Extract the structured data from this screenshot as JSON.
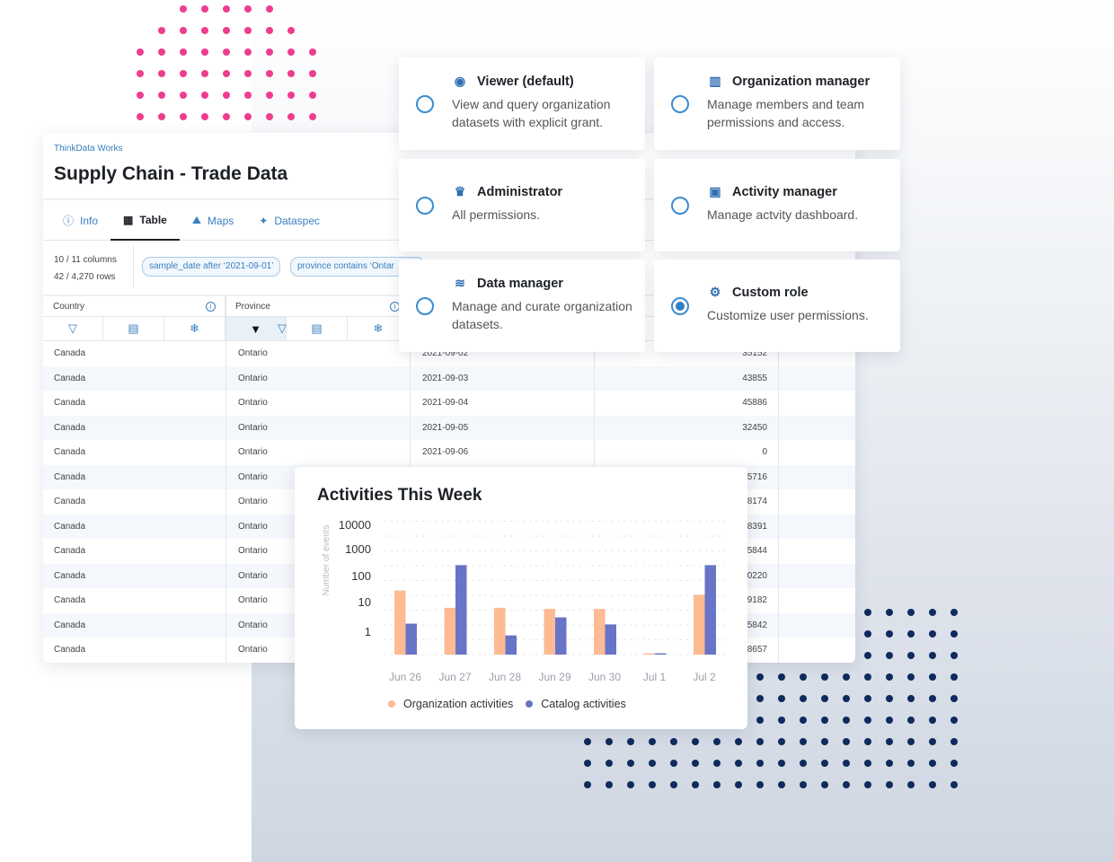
{
  "dataset": {
    "brand": "ThinkData Works",
    "title": "Supply Chain - Trade Data",
    "tabs": [
      {
        "label": "Info",
        "icon": "info-icon"
      },
      {
        "label": "Table",
        "icon": "table-icon",
        "active": true
      },
      {
        "label": "Maps",
        "icon": "maps-icon"
      },
      {
        "label": "Dataspec",
        "icon": "dataspec-icon"
      }
    ],
    "columns_count": "10 / 11 columns",
    "rows_count": "42 / 4,270 rows",
    "filters": [
      "sample_date after ‘2021-09-01’",
      "province contains ‘Ontar"
    ],
    "headers": [
      "Country",
      "Province"
    ],
    "rows": [
      [
        "Canada",
        "Ontario",
        "2021-09-02",
        "35152"
      ],
      [
        "Canada",
        "Ontario",
        "2021-09-03",
        "43855"
      ],
      [
        "Canada",
        "Ontario",
        "2021-09-04",
        "45886"
      ],
      [
        "Canada",
        "Ontario",
        "2021-09-05",
        "32450"
      ],
      [
        "Canada",
        "Ontario",
        "2021-09-06",
        "0"
      ],
      [
        "Canada",
        "Ontario",
        "",
        "5716"
      ],
      [
        "Canada",
        "Ontario",
        "",
        "8174"
      ],
      [
        "Canada",
        "Ontario",
        "",
        "8391"
      ],
      [
        "Canada",
        "Ontario",
        "",
        "5844"
      ],
      [
        "Canada",
        "Ontario",
        "",
        "0220"
      ],
      [
        "Canada",
        "Ontario",
        "",
        "9182"
      ],
      [
        "Canada",
        "Ontario",
        "",
        "5842"
      ],
      [
        "Canada",
        "Ontario",
        "",
        "8657"
      ]
    ]
  },
  "roles": [
    {
      "title": "Viewer (default)",
      "icon": "eye-icon",
      "desc": "View and query organization datasets with explicit grant.",
      "selected": false
    },
    {
      "title": "Organization manager",
      "icon": "building-icon",
      "desc": "Manage members and team permissions and access.",
      "selected": false
    },
    {
      "title": "Administrator",
      "icon": "crown-icon",
      "desc": "All permissions.",
      "selected": false
    },
    {
      "title": "Activity manager",
      "icon": "dashboard-icon",
      "desc": "Manage actvity dashboard.",
      "selected": false
    },
    {
      "title": "Data manager",
      "icon": "layers-icon",
      "desc": "Manage and curate organization datasets.",
      "selected": false
    },
    {
      "title": "Custom role",
      "icon": "gears-icon",
      "desc": "Customize user permissions.",
      "selected": true
    }
  ],
  "chart_data": {
    "type": "bar",
    "title": "Activities This Week",
    "ylabel": "Number of events",
    "yscale": "log",
    "yticks": [
      "10000",
      "1000",
      "100",
      "10",
      "1"
    ],
    "categories": [
      "Jun 26",
      "Jun 27",
      "Jun 28",
      "Jun 29",
      "Jun 30",
      "Jul 1",
      "Jul 2"
    ],
    "series": [
      {
        "name": "Organization activities",
        "color": "#fdba93",
        "values": [
          46,
          12,
          12,
          11,
          11,
          0.35,
          33
        ]
      },
      {
        "name": "Catalog activities",
        "color": "#6874c6",
        "values": [
          3.5,
          330,
          1.4,
          5.7,
          3.3,
          0.35,
          330
        ]
      }
    ],
    "grid": true,
    "legend": "bottom"
  }
}
